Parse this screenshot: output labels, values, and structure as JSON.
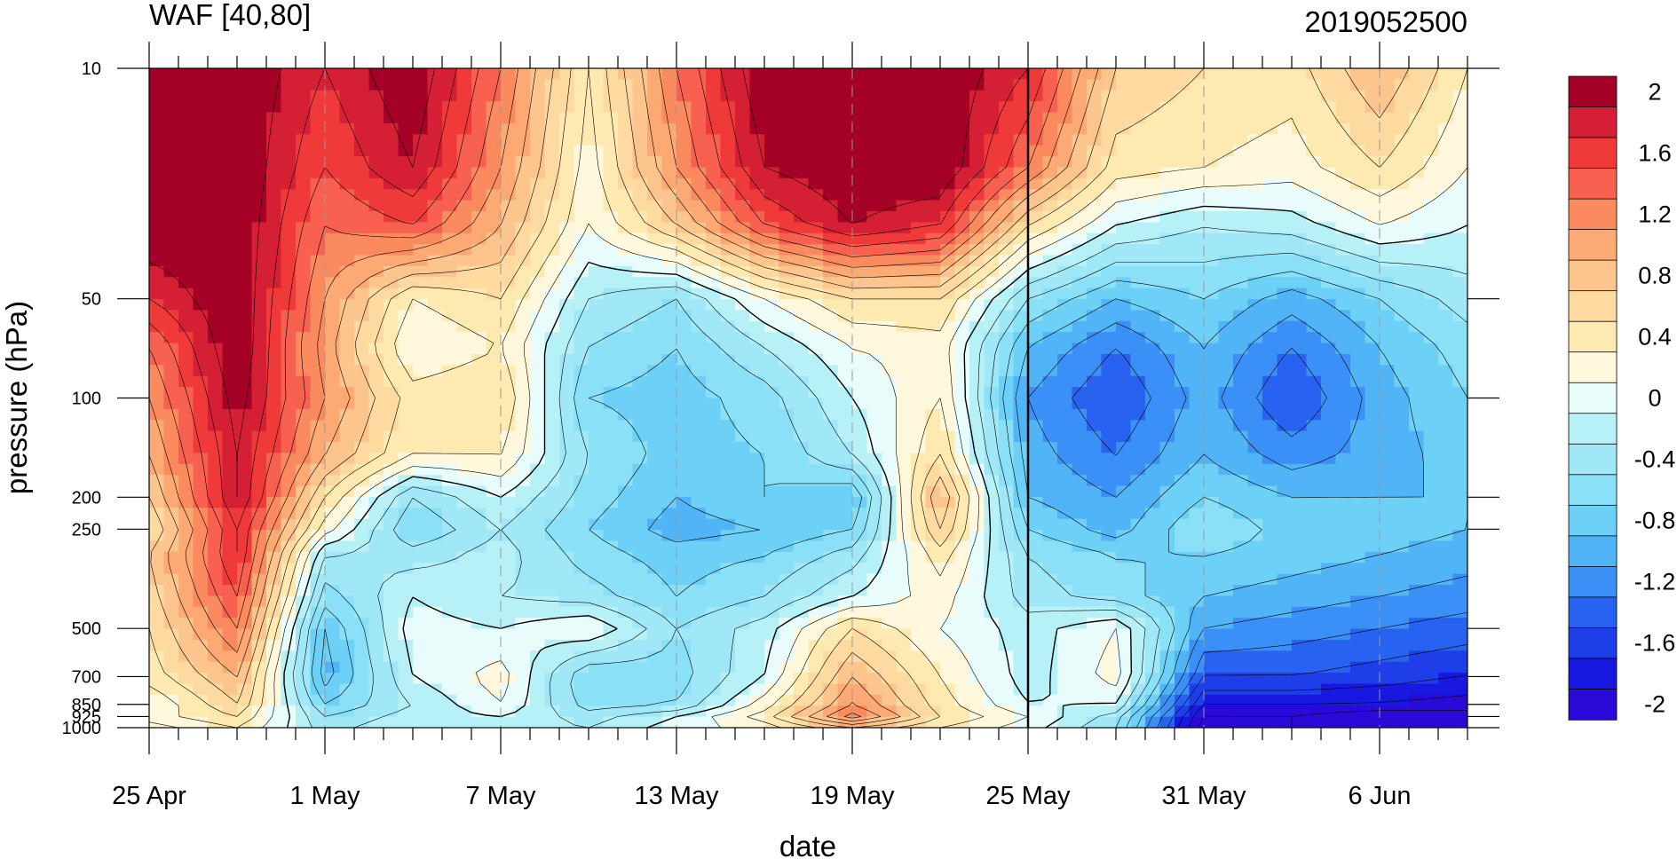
{
  "chart_data": {
    "type": "heatmap",
    "title": "WAF [40,80]",
    "subtitle": "2019052500",
    "xlabel": "date",
    "ylabel": "pressure (hPa)",
    "x_tick_labels": [
      "25 Apr",
      "1 May",
      "7 May",
      "13 May",
      "19 May",
      "25 May",
      "31 May",
      "6 Jun"
    ],
    "x_tick_days": [
      0,
      6,
      12,
      18,
      24,
      30,
      36,
      42
    ],
    "x_range_days": [
      0,
      45
    ],
    "marked_date_day": 30,
    "y_scale": "log",
    "y_ticks": [
      10,
      50,
      100,
      200,
      250,
      500,
      700,
      850,
      925,
      1000
    ],
    "y_tick_labels": [
      "10",
      "50",
      "100",
      "200",
      "250",
      "500",
      "700",
      "850",
      "925",
      "1000"
    ],
    "ylim": [
      10,
      1000
    ],
    "colorbar": {
      "levels": [
        2,
        1.8,
        1.6,
        1.4,
        1.2,
        1.0,
        0.8,
        0.6,
        0.4,
        0.2,
        0,
        -0.2,
        -0.4,
        -0.6,
        -0.8,
        -1.0,
        -1.2,
        -1.4,
        -1.6,
        -1.8,
        -2
      ],
      "labels": [
        "2",
        "1.6",
        "1.2",
        "0.8",
        "0.4",
        "0",
        "-0.4",
        "-0.8",
        "-1.2",
        "-1.6",
        "-2"
      ],
      "colors": [
        "#a50026",
        "#d41f35",
        "#f03a3a",
        "#f86050",
        "#fb8a5e",
        "#fca973",
        "#fdc58e",
        "#fed9a0",
        "#fee9b0",
        "#fff8dc",
        "#e8fcfc",
        "#b6f1f7",
        "#a0e8f7",
        "#8ae0f7",
        "#6cd0f7",
        "#50b4f7",
        "#3a90f7",
        "#2862f0",
        "#1d3ee8",
        "#1818e0",
        "#2a0ad8"
      ]
    },
    "grid": "dashed vertical lines at labeled dates",
    "field": {
      "x_days": [
        0,
        3,
        6,
        9,
        12,
        15,
        18,
        21,
        24,
        27,
        30,
        33,
        36,
        39,
        42,
        45
      ],
      "pressure_levels": [
        10,
        20,
        30,
        50,
        70,
        100,
        150,
        200,
        250,
        300,
        400,
        500,
        700,
        850,
        925,
        1000
      ],
      "values": [
        [
          2.2,
          2.2,
          1.8,
          2.2,
          1.4,
          0.4,
          1.4,
          2.2,
          2.2,
          2.2,
          1.8,
          0.8,
          0.6,
          0.5,
          1.0,
          0.4
        ],
        [
          2.2,
          2.2,
          1.6,
          2.0,
          1.2,
          0.3,
          1.2,
          2.0,
          2.2,
          2.2,
          1.4,
          0.5,
          0.4,
          0.3,
          0.6,
          0.2
        ],
        [
          2.2,
          2.2,
          1.4,
          1.6,
          1.0,
          0.2,
          0.8,
          1.6,
          2.0,
          1.8,
          0.6,
          0.0,
          -0.2,
          -0.1,
          0.2,
          0.0
        ],
        [
          1.8,
          2.2,
          1.2,
          0.4,
          0.6,
          -0.2,
          -0.4,
          0.2,
          0.6,
          0.6,
          -0.4,
          -0.8,
          -0.6,
          -0.9,
          -0.6,
          -0.3
        ],
        [
          1.4,
          2.2,
          1.1,
          0.2,
          0.4,
          -0.4,
          -0.6,
          -0.2,
          0.2,
          0.3,
          -0.8,
          -1.2,
          -0.8,
          -1.2,
          -0.8,
          -0.5
        ],
        [
          1.2,
          2.1,
          1.2,
          0.5,
          0.6,
          -0.6,
          -0.7,
          -0.5,
          0.0,
          0.4,
          -1.0,
          -1.4,
          -0.9,
          -1.4,
          -0.9,
          -0.6
        ],
        [
          1.0,
          2.0,
          1.0,
          0.4,
          0.4,
          -0.4,
          -0.7,
          -0.6,
          -0.2,
          0.6,
          -0.9,
          -1.2,
          -0.8,
          -1.1,
          -0.9,
          -0.7
        ],
        [
          0.8,
          2.0,
          0.6,
          -0.4,
          0.0,
          -0.5,
          -0.8,
          -0.6,
          -0.8,
          1.0,
          -0.8,
          -1.0,
          -0.6,
          -0.8,
          -0.8,
          -0.8
        ],
        [
          0.6,
          1.8,
          0.3,
          -0.6,
          -0.2,
          -0.6,
          -0.9,
          -0.8,
          -0.6,
          0.8,
          -0.6,
          -0.9,
          -0.4,
          -0.7,
          -0.7,
          -0.8
        ],
        [
          0.8,
          1.8,
          -0.2,
          -0.3,
          -0.1,
          -0.5,
          -0.7,
          -0.6,
          -0.3,
          0.5,
          -0.4,
          -0.6,
          -0.6,
          -0.7,
          -0.8,
          -0.9
        ],
        [
          0.7,
          1.6,
          -0.5,
          0.0,
          -0.2,
          -0.3,
          -0.6,
          -0.4,
          0.0,
          0.3,
          -0.3,
          -0.5,
          -0.8,
          -0.9,
          -1.0,
          -1.1
        ],
        [
          0.6,
          1.4,
          -0.8,
          0.1,
          0.0,
          0.2,
          -0.4,
          -0.1,
          0.6,
          0.2,
          -0.1,
          0.2,
          -1.0,
          -1.1,
          -1.2,
          -1.3
        ],
        [
          0.5,
          1.0,
          -0.9,
          0.0,
          0.3,
          -0.6,
          -0.5,
          0.0,
          1.0,
          0.4,
          -0.1,
          0.3,
          -1.4,
          -1.4,
          -1.5,
          -1.6
        ],
        [
          0.2,
          0.8,
          -0.6,
          -0.2,
          0.2,
          -0.5,
          -0.4,
          0.3,
          1.2,
          0.5,
          0.0,
          0.0,
          -1.8,
          -1.8,
          -1.8,
          -1.9
        ],
        [
          0.3,
          0.6,
          -0.4,
          -0.1,
          0.0,
          -0.3,
          0.0,
          0.5,
          1.5,
          0.6,
          0.2,
          -0.3,
          -2.0,
          -2.0,
          -2.2,
          -2.1
        ],
        [
          0.1,
          0.4,
          -0.3,
          0.0,
          -0.1,
          -0.2,
          0.1,
          0.3,
          0.8,
          0.4,
          0.1,
          -0.4,
          -2.1,
          -2.0,
          -2.2,
          -2.0
        ]
      ]
    }
  }
}
